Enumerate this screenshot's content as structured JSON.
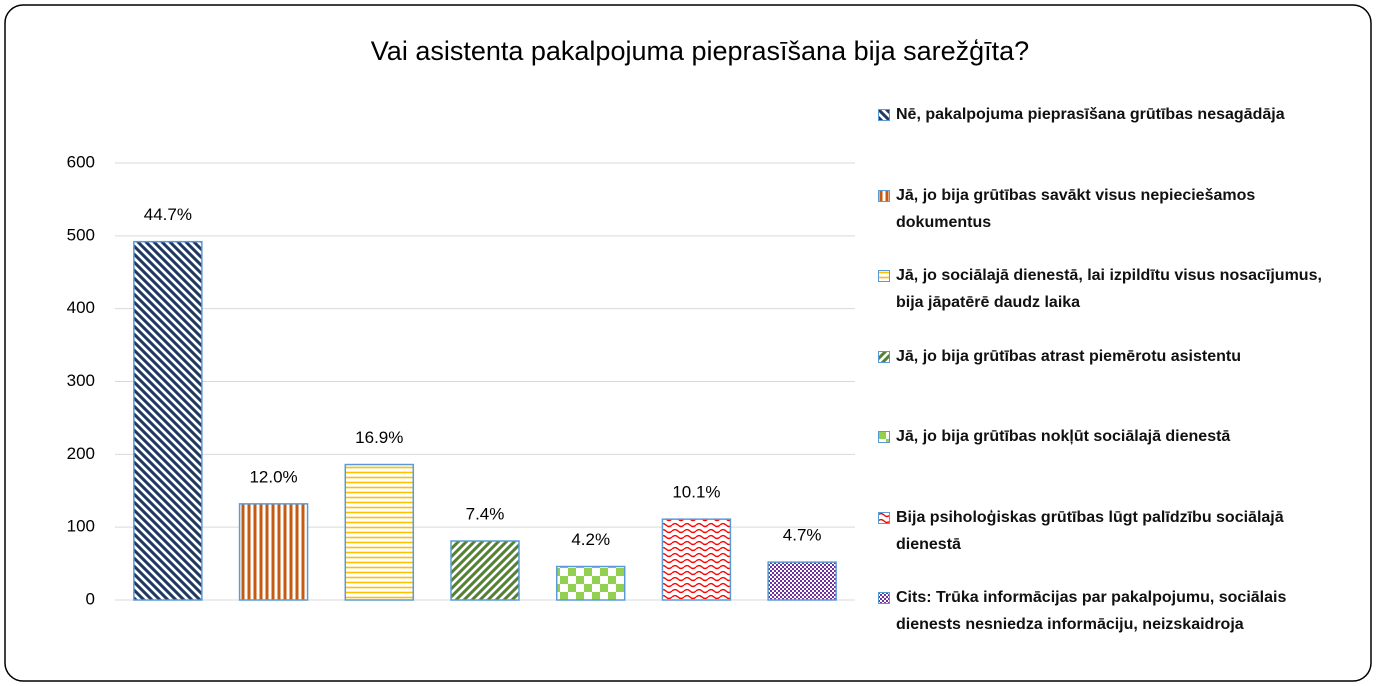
{
  "chart_data": {
    "type": "bar",
    "title": "Vai asistenta pakalpojuma pieprasīšana bija sarežģīta?",
    "ylim": [
      0,
      600
    ],
    "yticks": [
      0,
      100,
      200,
      300,
      400,
      500,
      600
    ],
    "grid": true,
    "series": [
      {
        "name": "Nē, pakalpojuma pieprasīšana grūtības nesagādāja",
        "color": "#1f3864",
        "pattern": "diagonal",
        "values": [
          492
        ],
        "value_labels": [
          "44.7%"
        ]
      },
      {
        "name": "Jā, jo bija grūtības savākt visus nepieciešamos dokumentus",
        "color": "#c55a11",
        "pattern": "vertical",
        "values": [
          132
        ],
        "value_labels": [
          "12.0%"
        ]
      },
      {
        "name": "Jā, jo sociālajā dienestā, lai izpildītu visus nosacījumus, bija jāpatērē daudz laika",
        "color": "#ffc000",
        "pattern": "horizontal",
        "values": [
          186
        ],
        "value_labels": [
          "16.9%"
        ]
      },
      {
        "name": "Jā, jo bija grūtības atrast piemērotu asistentu",
        "color": "#548235",
        "pattern": "diagonal-up",
        "values": [
          81
        ],
        "value_labels": [
          "7.4%"
        ]
      },
      {
        "name": "Jā, jo bija grūtības nokļūt sociālajā dienestā",
        "color": "#92d050",
        "pattern": "checker",
        "values": [
          46
        ],
        "value_labels": [
          "4.2%"
        ]
      },
      {
        "name": "Bija psiholoģiskas grūtības lūgt palīdzību sociālajā dienestā",
        "color": "#ff0000",
        "pattern": "wave",
        "values": [
          111
        ],
        "value_labels": [
          "10.1%"
        ]
      },
      {
        "name": "Cits: Trūka informācijas par pakalpojumu, sociālais dienests nesniedza informāciju, neizskaidroja",
        "color": "#7030a0",
        "pattern": "smallchecker",
        "values": [
          52
        ],
        "value_labels": [
          "4.7%"
        ]
      }
    ]
  }
}
